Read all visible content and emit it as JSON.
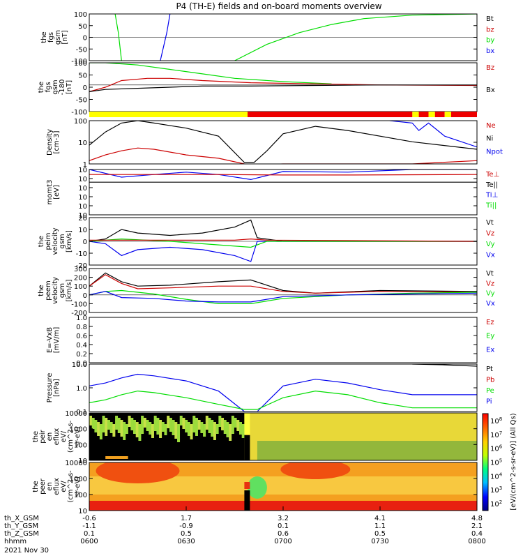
{
  "title": "P4 (TH-E) fields and on-board moments overview",
  "colors": {
    "black": "#000000",
    "red": "#cc0000",
    "green": "#00dd00",
    "blue": "#0000ee",
    "yellow": "#ffff00",
    "bar_red": "#ee0000"
  },
  "xaxis": {
    "rows": [
      {
        "label": "th_X_GSM",
        "values": [
          "-0.6",
          "1.7",
          "3.2",
          "4.1",
          "4.8"
        ]
      },
      {
        "label": "th_Y_GSM",
        "values": [
          "-1.1",
          "-0.9",
          "0.1",
          "1.1",
          "2.1"
        ]
      },
      {
        "label": "th_Z_GSM",
        "values": [
          "0.1",
          "0.5",
          "0.6",
          "0.5",
          "0.4"
        ]
      },
      {
        "label": "hhmm",
        "values": [
          "0600",
          "0630",
          "0700",
          "0730",
          "0800"
        ]
      }
    ],
    "date": "2021 Nov 30",
    "time_range_minutes": [
      0,
      120
    ]
  },
  "chart_data": [
    {
      "type": "line",
      "id": "fgs",
      "ylabel": [
        "the",
        "fgs",
        "gsm",
        "[nT]"
      ],
      "ylim": [
        -100,
        100
      ],
      "yticks": [
        "100",
        "50",
        "0",
        "-50",
        "-100"
      ],
      "legend": [
        "Bt",
        "bz",
        "by",
        "bx"
      ],
      "legend_colors": [
        "black",
        "red",
        "green",
        "blue"
      ],
      "series": [
        {
          "name": "by",
          "color": "green",
          "x": [
            8,
            9,
            10
          ],
          "y": [
            100,
            20,
            -100
          ]
        },
        {
          "name": "bx",
          "color": "blue",
          "x": [
            22,
            24,
            25
          ],
          "y": [
            -100,
            20,
            100
          ]
        },
        {
          "name": "by",
          "color": "green",
          "x": [
            45,
            55,
            65,
            75,
            85,
            100,
            120
          ],
          "y": [
            -100,
            -30,
            20,
            55,
            80,
            95,
            100
          ]
        }
      ]
    },
    {
      "type": "line",
      "id": "fgs_dsl",
      "ylabel": [
        "the",
        "fgs",
        "gsm",
        "-180",
        "[nT]"
      ],
      "ylim": [
        -120,
        100
      ],
      "yticks": [
        "100",
        "50",
        "0",
        "-50",
        "-100"
      ],
      "legend": [
        "Bz",
        "Bx"
      ],
      "legend_colors": [
        "red",
        "black"
      ],
      "series": [
        {
          "name": "green",
          "color": "green",
          "x": [
            0,
            5,
            15,
            25,
            35,
            45,
            60,
            75
          ],
          "y": [
            100,
            100,
            90,
            70,
            50,
            30,
            15,
            5
          ]
        },
        {
          "name": "red",
          "color": "red",
          "x": [
            0,
            5,
            10,
            18,
            25,
            35,
            50,
            70,
            90,
            120
          ],
          "y": [
            -30,
            -10,
            20,
            30,
            30,
            20,
            10,
            5,
            0,
            -2
          ]
        },
        {
          "name": "black",
          "color": "black",
          "x": [
            0,
            5,
            15,
            25,
            35,
            50,
            70,
            90,
            120
          ],
          "y": [
            -30,
            -20,
            -15,
            -10,
            -5,
            -5,
            -2,
            0,
            0
          ]
        }
      ]
    },
    {
      "type": "bar",
      "id": "mode_bar",
      "segments": [
        {
          "start": 0,
          "end": 49,
          "color": "yellow"
        },
        {
          "start": 49,
          "end": 100,
          "color": "bar_red"
        },
        {
          "start": 100,
          "end": 102,
          "color": "yellow"
        },
        {
          "start": 102,
          "end": 105,
          "color": "bar_red"
        },
        {
          "start": 105,
          "end": 107,
          "color": "yellow"
        },
        {
          "start": 107,
          "end": 110,
          "color": "bar_red"
        },
        {
          "start": 110,
          "end": 112,
          "color": "yellow"
        },
        {
          "start": 112,
          "end": 120,
          "color": "bar_red"
        }
      ]
    },
    {
      "type": "line",
      "id": "density",
      "ylabel": [
        "Density",
        "[cm-3]"
      ],
      "ylog": true,
      "ylim": [
        1,
        200
      ],
      "yticks": [
        "100",
        "10",
        "1"
      ],
      "legend": [
        "Ne",
        "Ni",
        "Npot"
      ],
      "legend_colors": [
        "red",
        "black",
        "blue"
      ],
      "series": [
        {
          "name": "Ni",
          "color": "black",
          "x": [
            0,
            5,
            10,
            15,
            20,
            30,
            40,
            48,
            51,
            55,
            60,
            70,
            80,
            100,
            120
          ],
          "y": [
            10,
            50,
            150,
            200,
            150,
            80,
            30,
            1.2,
            1.2,
            5,
            40,
            100,
            60,
            15,
            6
          ]
        },
        {
          "name": "Ne",
          "color": "red",
          "x": [
            0,
            5,
            10,
            15,
            20,
            30,
            40,
            48,
            52,
            60,
            70,
            80,
            100,
            120
          ],
          "y": [
            1.5,
            3,
            5,
            7,
            6,
            3,
            2,
            1,
            0.9,
            1,
            1,
            1,
            1,
            1.5
          ]
        },
        {
          "name": "Npot",
          "color": "blue",
          "x": [
            93,
            100,
            102,
            105,
            110,
            120
          ],
          "y": [
            200,
            150,
            60,
            150,
            30,
            8
          ]
        }
      ]
    },
    {
      "type": "line",
      "id": "moms_t3",
      "ylabel": [
        "momt3",
        "[eV]"
      ],
      "ylog": true,
      "ylim": [
        0.001,
        1000000
      ],
      "yticks": [
        "10",
        "10",
        "10",
        "10",
        "10",
        "10"
      ],
      "legend": [
        "Te⊥",
        "Te||",
        "Ti⊥",
        "Ti||"
      ],
      "legend_colors": [
        "red",
        "black",
        "blue",
        "green"
      ],
      "series": [
        {
          "name": "Ti",
          "color": "blue",
          "x": [
            0,
            10,
            20,
            30,
            40,
            50,
            60,
            80,
            100,
            120
          ],
          "y": [
            1000000,
            30000,
            100000,
            300000,
            100000,
            10000,
            400000,
            300000,
            1000000,
            1000000
          ]
        },
        {
          "name": "Te",
          "color": "black",
          "x": [
            0,
            20,
            40,
            60,
            80,
            100,
            120
          ],
          "y": [
            3000,
            3000,
            3000,
            3000,
            3000,
            3000,
            3000
          ]
        },
        {
          "name": "Te perp",
          "color": "red",
          "x": [
            0,
            40,
            60,
            80,
            120
          ],
          "y": [
            100000,
            100000,
            80000,
            80000,
            100000
          ]
        }
      ]
    },
    {
      "type": "line",
      "id": "peim_velocity",
      "ylabel": [
        "the",
        "peim",
        "velocity",
        "gsm",
        "[km/s]"
      ],
      "ylim": [
        -20,
        20
      ],
      "yticks": [
        "20",
        "10",
        "0",
        "-10",
        "-20"
      ],
      "legend": [
        "Vt",
        "Vz",
        "Vy",
        "Vx"
      ],
      "legend_colors": [
        "black",
        "red",
        "green",
        "blue"
      ],
      "series": [
        {
          "name": "Vt",
          "color": "black",
          "x": [
            0,
            5,
            10,
            15,
            25,
            35,
            45,
            50,
            52,
            60,
            120
          ],
          "y": [
            0,
            2,
            10,
            7,
            5,
            7,
            12,
            18,
            3,
            0,
            0
          ]
        },
        {
          "name": "Vx",
          "color": "blue",
          "x": [
            0,
            5,
            10,
            15,
            25,
            35,
            45,
            50,
            52,
            60,
            120
          ],
          "y": [
            0,
            -2,
            -12,
            -7,
            -5,
            -7,
            -12,
            -17,
            0,
            0,
            0
          ]
        },
        {
          "name": "Vy",
          "color": "green",
          "x": [
            0,
            10,
            25,
            40,
            50,
            55,
            120
          ],
          "y": [
            0,
            2,
            0,
            -3,
            -5,
            0,
            0
          ]
        },
        {
          "name": "Vz",
          "color": "red",
          "x": [
            0,
            20,
            45,
            50,
            55,
            120
          ],
          "y": [
            1,
            1,
            1,
            2,
            1,
            0
          ]
        }
      ]
    },
    {
      "type": "line",
      "id": "peem_velocity",
      "ylabel": [
        "the",
        "peem",
        "velocity",
        "gsm",
        "[km/s]"
      ],
      "ylim": [
        -200,
        300
      ],
      "yticks": [
        "300",
        "200",
        "100",
        "0",
        "-100",
        "-200"
      ],
      "legend": [
        "Vt",
        "Vz",
        "Vy",
        "Vx"
      ],
      "legend_colors": [
        "black",
        "red",
        "green",
        "blue"
      ],
      "series": [
        {
          "name": "Vt",
          "color": "black",
          "x": [
            0,
            5,
            10,
            15,
            25,
            40,
            50,
            60,
            70,
            90,
            120
          ],
          "y": [
            100,
            250,
            150,
            100,
            110,
            150,
            170,
            50,
            20,
            50,
            40
          ]
        },
        {
          "name": "Vz",
          "color": "red",
          "x": [
            0,
            5,
            10,
            15,
            25,
            40,
            50,
            60,
            70,
            90,
            120
          ],
          "y": [
            100,
            230,
            130,
            70,
            80,
            100,
            100,
            40,
            20,
            40,
            30
          ]
        },
        {
          "name": "Vy",
          "color": "green",
          "x": [
            0,
            5,
            10,
            20,
            30,
            40,
            50,
            60,
            80,
            100,
            120
          ],
          "y": [
            0,
            40,
            50,
            10,
            -50,
            -100,
            -100,
            -40,
            0,
            20,
            30
          ]
        },
        {
          "name": "Vx",
          "color": "blue",
          "x": [
            0,
            5,
            10,
            20,
            30,
            40,
            50,
            60,
            80,
            100,
            120
          ],
          "y": [
            0,
            40,
            -30,
            -40,
            -70,
            -80,
            -80,
            -20,
            0,
            10,
            20
          ]
        }
      ]
    },
    {
      "type": "line",
      "id": "efield",
      "ylabel": [
        "E=-VxB",
        "[mV/m]"
      ],
      "ylim": [
        0,
        1
      ],
      "yticks": [
        "1.0",
        "0.8",
        "0.6",
        "0.4",
        "0.2",
        "0.0"
      ],
      "legend": [
        "Ez",
        "Ey",
        "Ex"
      ],
      "legend_colors": [
        "red",
        "green",
        "blue"
      ],
      "series": []
    },
    {
      "type": "line",
      "id": "pressure",
      "ylabel": [
        "Pressure",
        "[nPa]"
      ],
      "ylog": true,
      "ylim": [
        0.03,
        20
      ],
      "yticks": [
        "10.0",
        "1.0",
        "0.1"
      ],
      "legend": [
        "Pt",
        "Pb",
        "Pe",
        "Pi"
      ],
      "legend_colors": [
        "black",
        "red",
        "green",
        "blue"
      ],
      "series": [
        {
          "name": "Pt",
          "color": "black",
          "x": [
            100,
            110,
            120
          ],
          "y": [
            20,
            18,
            15
          ]
        },
        {
          "name": "Pi",
          "color": "blue",
          "x": [
            0,
            5,
            10,
            15,
            20,
            30,
            40,
            48,
            52,
            60,
            70,
            80,
            90,
            100,
            110,
            120
          ],
          "y": [
            1,
            1.5,
            3,
            5,
            4,
            2,
            0.5,
            0.03,
            0.03,
            1,
            2.5,
            1.5,
            0.6,
            0.3,
            0.3,
            0.3
          ]
        },
        {
          "name": "Pe",
          "color": "green",
          "x": [
            0,
            5,
            10,
            15,
            20,
            30,
            40,
            48,
            52,
            60,
            70,
            80,
            90,
            100,
            110,
            120
          ],
          "y": [
            0.1,
            0.15,
            0.3,
            0.5,
            0.4,
            0.2,
            0.08,
            0.04,
            0.04,
            0.2,
            0.5,
            0.3,
            0.1,
            0.05,
            0.05,
            0.05
          ]
        }
      ]
    },
    {
      "type": "heatmap",
      "id": "peir_flux",
      "ylabel": [
        "the",
        "peir",
        "en",
        "eflux",
        "eV/",
        "(cm^2-s-",
        "sr-eV)"
      ],
      "ylog": true,
      "ylim": [
        10,
        10000
      ],
      "yticks": [
        "10000",
        "1000",
        "100",
        "10"
      ]
    },
    {
      "type": "heatmap",
      "id": "peer_flux",
      "ylabel": [
        "the",
        "peer",
        "en",
        "eflux",
        "eV/",
        "(cm^2-s-",
        "sr-eV)"
      ],
      "ylog": true,
      "ylim": [
        10,
        10000
      ],
      "yticks": [
        "10000",
        "1000",
        "100",
        "10"
      ]
    }
  ],
  "colorbar": {
    "ticks": [
      "10",
      "10",
      "10",
      "10",
      "10",
      "10",
      "10"
    ],
    "exponents": [
      "8",
      "7",
      "6",
      "5",
      "4",
      "3",
      "2"
    ],
    "label": "[eV/(cm^2-s-sr-eV)] (All Qs)"
  }
}
